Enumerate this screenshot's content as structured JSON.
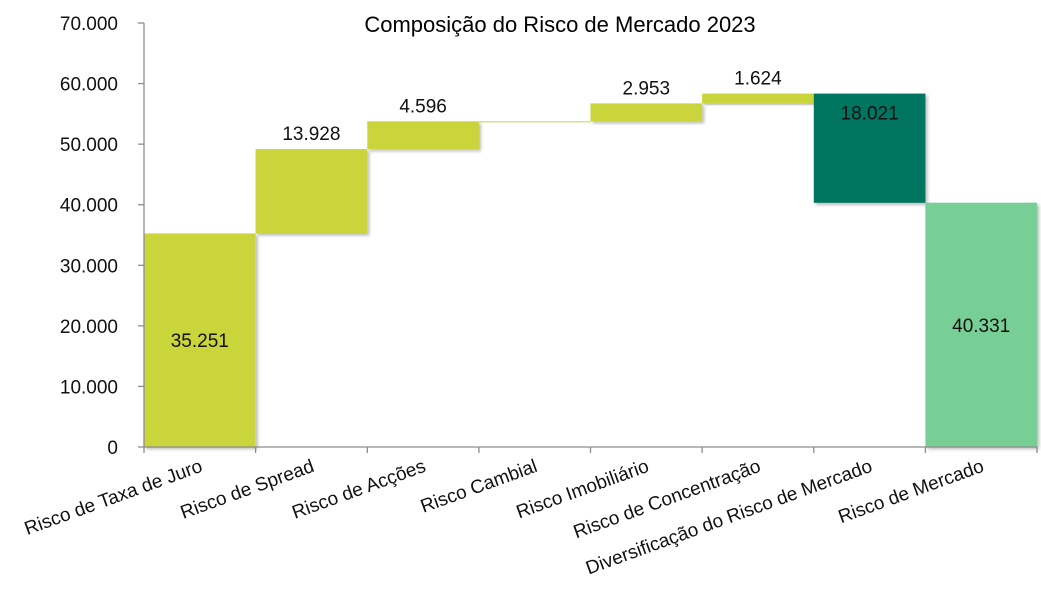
{
  "chart_data": {
    "type": "bar",
    "subtype": "waterfall",
    "title": "Composição do Risco de Mercado 2023",
    "categories": [
      "Risco de Taxa de Juro",
      "Risco de Spread",
      "Risco de Acções",
      "Risco Cambial",
      "Risco Imobiliário",
      "Risco de Concentração",
      "Diversificação do Risco de Mercado",
      "Risco de Mercado"
    ],
    "values": [
      35251,
      13928,
      4596,
      0,
      2953,
      1624,
      -18021,
      40331
    ],
    "value_labels": [
      "35.251",
      "13.928",
      "4.596",
      "",
      "2.953",
      "1.624",
      "18.021",
      "40.331"
    ],
    "bar_kinds": [
      "increase",
      "increase",
      "increase",
      "increase",
      "increase",
      "increase",
      "decrease",
      "total"
    ],
    "ylim": [
      0,
      70000
    ],
    "yticks": [
      {
        "value": 0,
        "label": "0"
      },
      {
        "value": 10000,
        "label": "10.000"
      },
      {
        "value": 20000,
        "label": "20.000"
      },
      {
        "value": 30000,
        "label": "30.000"
      },
      {
        "value": 40000,
        "label": "40.000"
      },
      {
        "value": 50000,
        "label": "50.000"
      },
      {
        "value": 60000,
        "label": "60.000"
      },
      {
        "value": 70000,
        "label": "70.000"
      }
    ],
    "xlabel": "",
    "ylabel": "",
    "grid": false,
    "legend": "none",
    "colors": {
      "increase": "#cad43b",
      "decrease": "#007560",
      "total": "#78cf96",
      "axis": "#8c8c8c"
    }
  }
}
